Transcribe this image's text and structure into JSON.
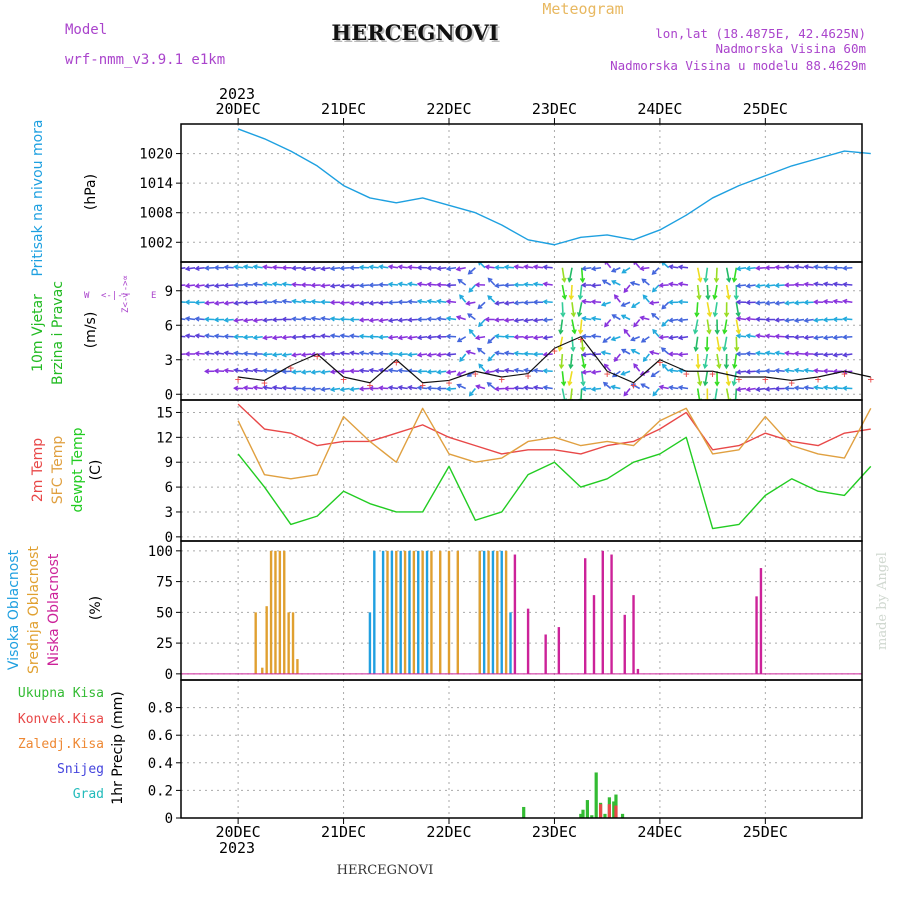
{
  "header": {
    "model_label": "Model",
    "model_name": "wrf-nmm_v3.9.1  e1km",
    "title": "HERCEGNOVI",
    "meteogram_label": "Meteogram",
    "lonlat": "lon,lat (18.4875E, 42.4625N)",
    "elevation": "Nadmorska Visina 60m",
    "model_elevation": "Nadmorska Visina u modelu 88.4629m",
    "footer_title": "HERCEGNOVI",
    "credit": "made by Angel"
  },
  "colors": {
    "pressure": "#1ea0e0",
    "wind_label": "#22bb22",
    "temp2m": "#e84848",
    "sfc_temp": "#e0a040",
    "dewpt": "#22cc22",
    "high_cloud": "#20a0e0",
    "mid_cloud": "#e0a030",
    "low_cloud": "#cc2299",
    "total_precip": "#33bb33",
    "conv_precip": "#e84848",
    "frozen_precip": "#ee8833",
    "snow": "#4444dd",
    "hail": "#22bbbb",
    "compass": "#aa44cc",
    "meteogram_label": "#e8b860",
    "header_purple": "#aa44cc"
  },
  "time_axis": {
    "year": "2023",
    "day_labels": [
      "20DEC",
      "21DEC",
      "22DEC",
      "23DEC",
      "24DEC",
      "25DEC"
    ]
  },
  "compass": {
    "n": "N",
    "e": "E",
    "w": "W",
    "s": "S",
    "vertical_glyph": "Z<-|->∝",
    "horizontal_glyph": "<-|->"
  },
  "chart_data": [
    {
      "type": "line",
      "panel": "pressure",
      "ylabel_main": "Pritisak na nivou mora",
      "unit": "(hPa)",
      "yticks": [
        "1002",
        "1008",
        "1014",
        "1020"
      ],
      "ylim": [
        998,
        1026
      ],
      "x_hours": [
        0,
        6,
        12,
        18,
        24,
        30,
        36,
        42,
        48,
        54,
        60,
        66,
        72,
        78,
        84,
        90,
        96,
        102,
        108,
        114,
        120,
        126,
        132,
        138,
        144
      ],
      "series": [
        {
          "values": [
            1025,
            1023,
            1020.5,
            1017.5,
            1013.5,
            1011,
            1010,
            1011,
            1009.5,
            1008,
            1005.5,
            1002.5,
            1001.5,
            1003,
            1003.5,
            1002.5,
            1004.5,
            1007.5,
            1011,
            1013.5,
            1015.5,
            1017.5,
            1019,
            1020.5,
            1020
          ]
        }
      ],
      "grid": true
    },
    {
      "type": "line",
      "panel": "wind",
      "ylabel_main": "10m Vjetar",
      "ylabel_sub": "Brzina i Pravac",
      "unit": "(m/s)",
      "yticks": [
        "0",
        "3",
        "6",
        "9"
      ],
      "ylim": [
        -0.5,
        11.5
      ],
      "x_hours": [
        0,
        6,
        12,
        18,
        24,
        30,
        36,
        42,
        48,
        54,
        60,
        66,
        72,
        78,
        84,
        90,
        96,
        102,
        108,
        114,
        120,
        126,
        132,
        138,
        144
      ],
      "series": [
        {
          "values": [
            1.5,
            1.2,
            2.5,
            3.5,
            1.5,
            1,
            3,
            1,
            1.2,
            2,
            1.5,
            1.8,
            4,
            5,
            2,
            1,
            3,
            2,
            2,
            1.5,
            1.5,
            1.2,
            1.5,
            2,
            1.5
          ]
        }
      ],
      "wind_arrow_levels": [
        0.5,
        2,
        3.5,
        5,
        6.5,
        8,
        9.5,
        11
      ],
      "grid": true
    },
    {
      "type": "line",
      "panel": "temperature",
      "ylabel_lines": [
        "2m Temp",
        "SFC Temp",
        "dewpt Temp"
      ],
      "unit": "(C)",
      "yticks": [
        "0",
        "3",
        "6",
        "9",
        "12",
        "15"
      ],
      "ylim": [
        -0.5,
        16.5
      ],
      "x_hours": [
        0,
        6,
        12,
        18,
        24,
        30,
        36,
        42,
        48,
        54,
        60,
        66,
        72,
        78,
        84,
        90,
        96,
        102,
        108,
        114,
        120,
        126,
        132,
        138,
        144
      ],
      "series": [
        {
          "key": "temp2m",
          "values": [
            16,
            13,
            12.5,
            11,
            11.5,
            11.5,
            12.5,
            13.5,
            12,
            11,
            10,
            10.5,
            10.5,
            10,
            11,
            11.5,
            13,
            15,
            10.5,
            11,
            12.5,
            11.5,
            11,
            12.5,
            13
          ]
        },
        {
          "key": "sfc_temp",
          "values": [
            14,
            7.5,
            7,
            7.5,
            14.5,
            11.5,
            9,
            15.5,
            10,
            9,
            9.5,
            11.5,
            12,
            11,
            11.5,
            11,
            14,
            15.5,
            10,
            10.5,
            14.5,
            11,
            10,
            9.5,
            15.5
          ]
        },
        {
          "key": "dewpt",
          "values": [
            10,
            6,
            1.5,
            2.5,
            5.5,
            4,
            3,
            3,
            8.5,
            2,
            3,
            7.5,
            9,
            6,
            7,
            9,
            10,
            12,
            1,
            1.5,
            5,
            7,
            5.5,
            5,
            8.5
          ]
        }
      ],
      "grid": true
    },
    {
      "type": "bar",
      "panel": "clouds",
      "ylabel_lines": [
        "Visoka Oblacnost",
        "Srednja Oblacnost",
        "Niska Oblacnost"
      ],
      "unit": "(%)",
      "yticks": [
        "0",
        "25",
        "50",
        "75",
        "100"
      ],
      "ylim": [
        -5,
        108
      ],
      "series": [
        {
          "key": "high_cloud",
          "name": "Visoka Oblacnost",
          "hours": [
            30,
            31,
            33,
            35,
            37,
            39,
            41,
            43,
            55,
            56,
            58,
            60,
            62
          ],
          "values": [
            50,
            100,
            100,
            100,
            100,
            100,
            100,
            100,
            100,
            100,
            100,
            100,
            50
          ]
        },
        {
          "key": "mid_cloud",
          "name": "Srednja Oblacnost",
          "hours": [
            4,
            5.5,
            6.5,
            7.5,
            8.5,
            9.5,
            10.5,
            11.5,
            12.5,
            13.5,
            34,
            36,
            38,
            40,
            42,
            44,
            46,
            48,
            50,
            55,
            57,
            59,
            61
          ],
          "values": [
            50,
            5,
            55,
            100,
            100,
            100,
            100,
            50,
            50,
            12,
            100,
            100,
            100,
            100,
            100,
            100,
            100,
            100,
            100,
            100,
            100,
            100,
            100
          ]
        },
        {
          "key": "low_cloud",
          "name": "Niska Oblacnost",
          "hours": [
            63,
            66,
            70,
            73,
            79,
            81,
            83,
            85,
            88,
            90,
            91,
            118,
            119
          ],
          "values": [
            97,
            53,
            32,
            38,
            94,
            64,
            100,
            97,
            48,
            64,
            4,
            63,
            86
          ]
        }
      ],
      "grid": true
    },
    {
      "type": "bar",
      "panel": "precip",
      "ylabel_lines": [
        "Ukupna Kisa",
        "Konvek.Kisa",
        "Zaledj.Kisa",
        "Snijeg",
        "Grad"
      ],
      "unit": "1hr Precip (mm)",
      "yticks": [
        "0",
        "0.2",
        "0.4",
        "0.6",
        "0.8"
      ],
      "ylim": [
        0,
        1.0
      ],
      "series": [
        {
          "key": "total_precip",
          "name": "Ukupna Kisa",
          "hours": [
            65,
            78,
            78.5,
            79.5,
            80.5,
            81.5,
            82.5,
            83.5,
            84.5,
            85.5,
            86,
            87.5
          ],
          "values": [
            0.08,
            0.03,
            0.06,
            0.13,
            0.02,
            0.33,
            0.11,
            0.03,
            0.15,
            0.12,
            0.17,
            0.03
          ]
        },
        {
          "key": "conv_precip",
          "name": "Konvek.Kisa",
          "hours": [
            82.5,
            84.5,
            86
          ],
          "values": [
            0.1,
            0.1,
            0.09
          ]
        }
      ],
      "grid": true
    }
  ]
}
